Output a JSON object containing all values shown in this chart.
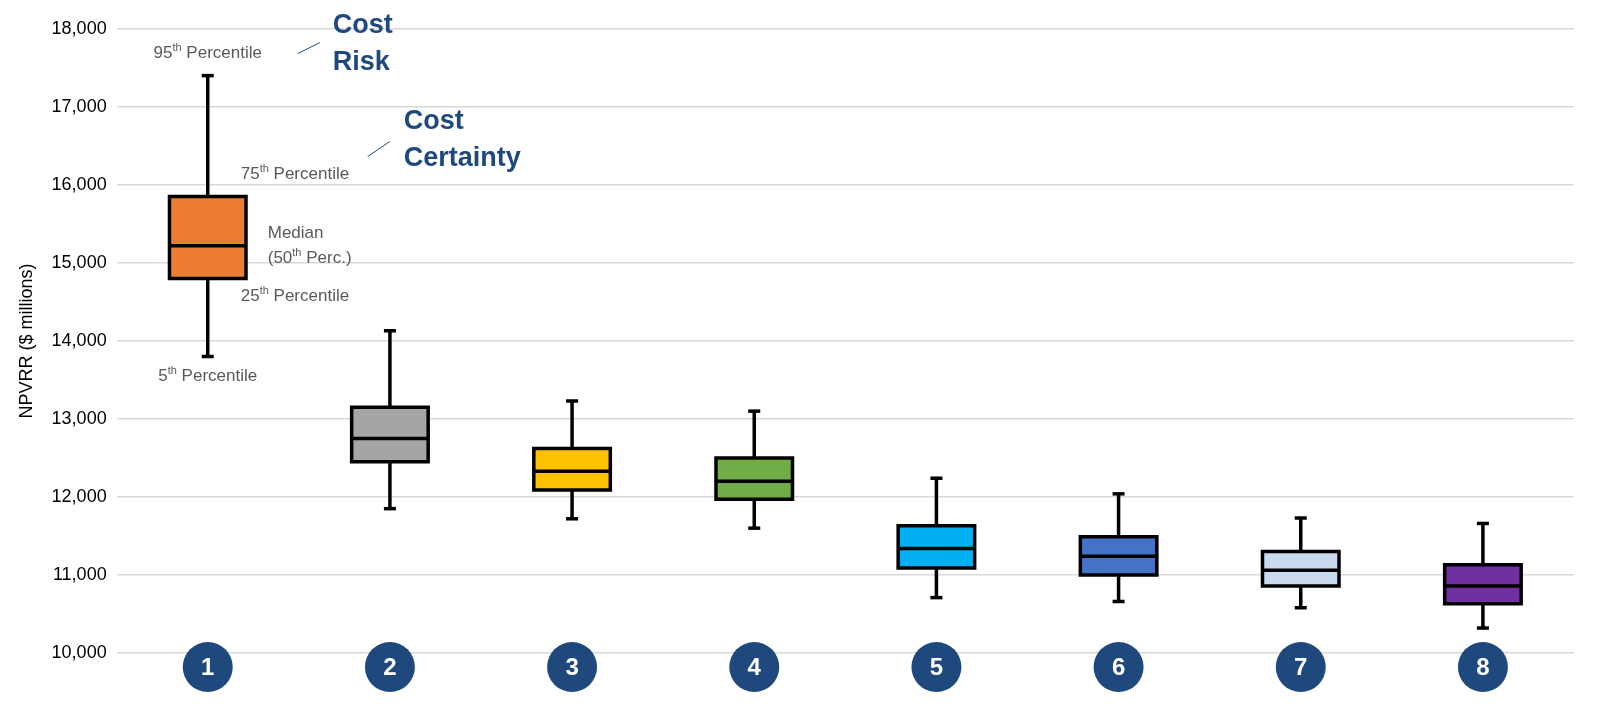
{
  "chart_data": {
    "type": "box",
    "ylabel": "NPVRR ($ millions)",
    "categories": [
      "1",
      "2",
      "3",
      "4",
      "5",
      "6",
      "7",
      "8"
    ],
    "boxes": [
      {
        "low": 13800,
        "q1": 14800,
        "median": 15220,
        "q3": 15850,
        "high": 17400
      },
      {
        "low": 11850,
        "q1": 12450,
        "median": 12750,
        "q3": 13150,
        "high": 14130
      },
      {
        "low": 11720,
        "q1": 12090,
        "median": 12330,
        "q3": 12620,
        "high": 13230
      },
      {
        "low": 11600,
        "q1": 11970,
        "median": 12200,
        "q3": 12500,
        "high": 13100
      },
      {
        "low": 10710,
        "q1": 11090,
        "median": 11340,
        "q3": 11630,
        "high": 12240
      },
      {
        "low": 10660,
        "q1": 11000,
        "median": 11240,
        "q3": 11490,
        "high": 12040
      },
      {
        "low": 10580,
        "q1": 10860,
        "median": 11060,
        "q3": 11300,
        "high": 11730
      },
      {
        "low": 10320,
        "q1": 10630,
        "median": 10860,
        "q3": 11130,
        "high": 11660
      }
    ],
    "colors": [
      "#ed7d31",
      "#a5a5a5",
      "#ffc000",
      "#70ad47",
      "#00b0f0",
      "#4472c4",
      "#c9daf0",
      "#7030a0"
    ],
    "ylim": [
      10000,
      18000
    ],
    "yticks": [
      {
        "value": 10000,
        "label": "10,000"
      },
      {
        "value": 11000,
        "label": "11,000"
      },
      {
        "value": 12000,
        "label": "12,000"
      },
      {
        "value": 13000,
        "label": "13,000"
      },
      {
        "value": 14000,
        "label": "14,000"
      },
      {
        "value": 15000,
        "label": "15,000"
      },
      {
        "value": 16000,
        "label": "16,000"
      },
      {
        "value": 17000,
        "label": "17,000"
      },
      {
        "value": 18000,
        "label": "18,000"
      }
    ],
    "grid": "y",
    "legend": false,
    "annotations": [
      {
        "text": "95$^{th}$ Percentile",
        "x": "1",
        "y": 17400
      },
      {
        "text": "75$^{th}$ Percentile",
        "x": "1",
        "y": 15850
      },
      "Median\n(50$^{th}$ Perc.)",
      {
        "text": "25$^{th}$ Percentile",
        "x": "1",
        "y": 14800
      },
      {
        "text": "5$^{th}$ Percentile",
        "x": "1",
        "y": 13800
      },
      "Cost\nRisk",
      "Cost\nCertainty"
    ]
  }
}
